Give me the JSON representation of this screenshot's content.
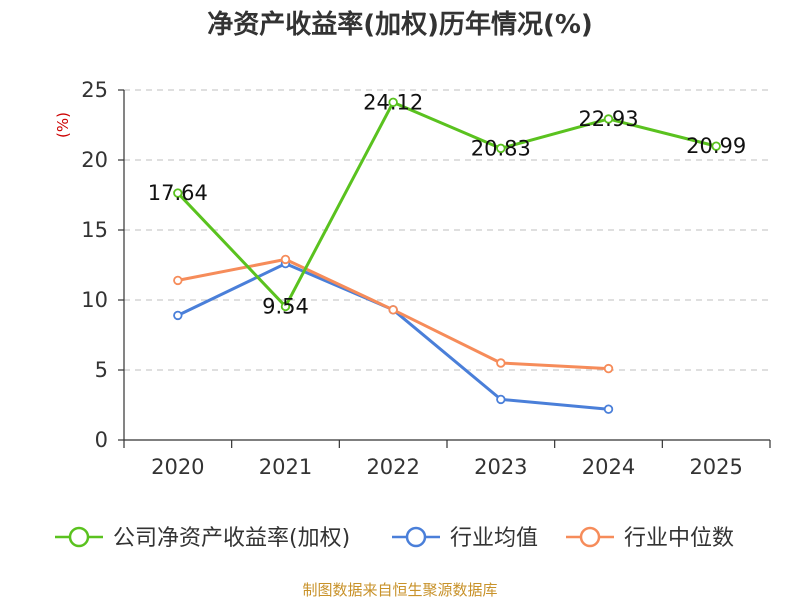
{
  "chart_data": {
    "type": "line",
    "title": "净资产收益率(加权)历年情况(%)",
    "ylabel": "(%)",
    "xlabel": "",
    "ylim": [
      0,
      25
    ],
    "yticks": [
      0,
      5,
      10,
      15,
      20,
      25
    ],
    "categories": [
      "2020",
      "2021",
      "2022",
      "2023",
      "2024",
      "2025"
    ],
    "grid": true,
    "legend_position": "bottom",
    "series": [
      {
        "name": "公司净资产收益率(加权)",
        "color": "#5ac21f",
        "values": [
          17.64,
          9.54,
          24.12,
          20.83,
          22.93,
          20.99
        ],
        "labels": true
      },
      {
        "name": "行业均值",
        "color": "#4a7fd9",
        "values": [
          8.9,
          12.6,
          9.3,
          2.9,
          2.2,
          null
        ],
        "labels": false
      },
      {
        "name": "行业中位数",
        "color": "#f68c5a",
        "values": [
          11.4,
          12.9,
          9.3,
          5.5,
          5.1,
          null
        ],
        "labels": false
      }
    ]
  },
  "source_text": "制图数据来自恒生聚源数据库",
  "colors": {
    "axis": "#333333",
    "grid": "#cccccc",
    "unit": "#cc0000",
    "source": "#c8922a"
  }
}
